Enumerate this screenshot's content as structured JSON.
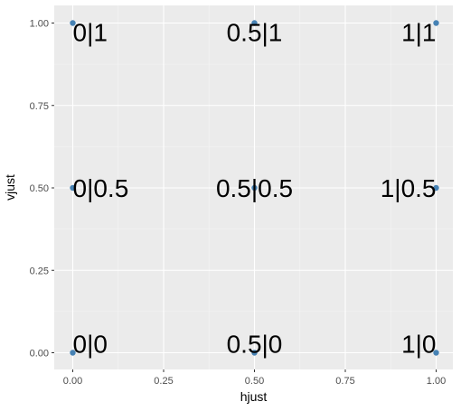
{
  "chart_data": {
    "type": "scatter",
    "xlabel": "hjust",
    "ylabel": "vjust",
    "xlim": [
      0,
      1
    ],
    "ylim": [
      0,
      1
    ],
    "x_ticks": [
      "0.00",
      "0.25",
      "0.50",
      "0.75",
      "1.00"
    ],
    "y_ticks": [
      "0.00",
      "0.25",
      "0.50",
      "0.75",
      "1.00"
    ],
    "grid": true,
    "colors": {
      "panel_background": "#ebebeb",
      "grid_major": "#ffffff",
      "grid_minor": "#f5f5f5",
      "point": "#4682b4",
      "text": "#000000"
    },
    "points": [
      {
        "x": 0,
        "y": 0,
        "label": "0|0"
      },
      {
        "x": 0.5,
        "y": 0,
        "label": "0.5|0"
      },
      {
        "x": 1,
        "y": 0,
        "label": "1|0"
      },
      {
        "x": 0,
        "y": 0.5,
        "label": "0|0.5"
      },
      {
        "x": 0.5,
        "y": 0.5,
        "label": "0.5|0.5"
      },
      {
        "x": 1,
        "y": 0.5,
        "label": "1|0.5"
      },
      {
        "x": 0,
        "y": 1,
        "label": "0|1"
      },
      {
        "x": 0.5,
        "y": 1,
        "label": "0.5|1"
      },
      {
        "x": 1,
        "y": 1,
        "label": "1|1"
      }
    ]
  }
}
